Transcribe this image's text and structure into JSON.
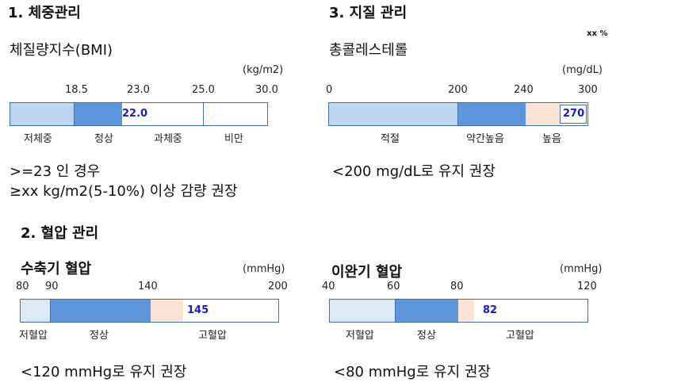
{
  "weight": {
    "title": "1.  체중관리",
    "subtitle": "체질량지수(BMI)",
    "unit": "(kg/m2)",
    "ticks": [
      "18.5",
      "23.0",
      "25.0",
      "30.0"
    ],
    "categories": [
      "저체중",
      "정상",
      "과체중",
      "비만"
    ],
    "value": "22.0",
    "note_line1": ">=23 인 경우",
    "note_line2": "≥xx kg/m2(5-10%) 이상 감량 권장"
  },
  "lipid": {
    "title": "3. 지질 관리",
    "subtitle": "총콜레스테롤",
    "badge": "xx %",
    "unit": "(mg/dL)",
    "ticks": [
      "0",
      "200",
      "240",
      "300"
    ],
    "categories": [
      "적절",
      "약간높음",
      "높음"
    ],
    "value": "270",
    "note": "<200 mg/dL로 유지 권장"
  },
  "bp": {
    "title": "2. 혈압 관리",
    "systolic": {
      "subtitle": "수축기 혈압",
      "unit": "(mmHg)",
      "ticks": [
        "80",
        "90",
        "140",
        "200"
      ],
      "categories": [
        "저혈압",
        "정상",
        "고혈압"
      ],
      "value": "145",
      "note": "<120 mmHg로 유지 권장"
    },
    "diastolic": {
      "subtitle": "이완기 혈압",
      "unit": "(mmHg)",
      "ticks": [
        "40",
        "60",
        "80",
        "120"
      ],
      "categories": [
        "저혈압",
        "정상",
        "고혈압"
      ],
      "value": "82",
      "note": "<80 mmHg로 유지 권장"
    }
  },
  "colors": {
    "light_blue": "#bcd6ef",
    "mid_blue": "#5b95dc",
    "peach": "#fbe3d6",
    "border": "#3f6fb5",
    "value_text": "#1a1acc"
  }
}
